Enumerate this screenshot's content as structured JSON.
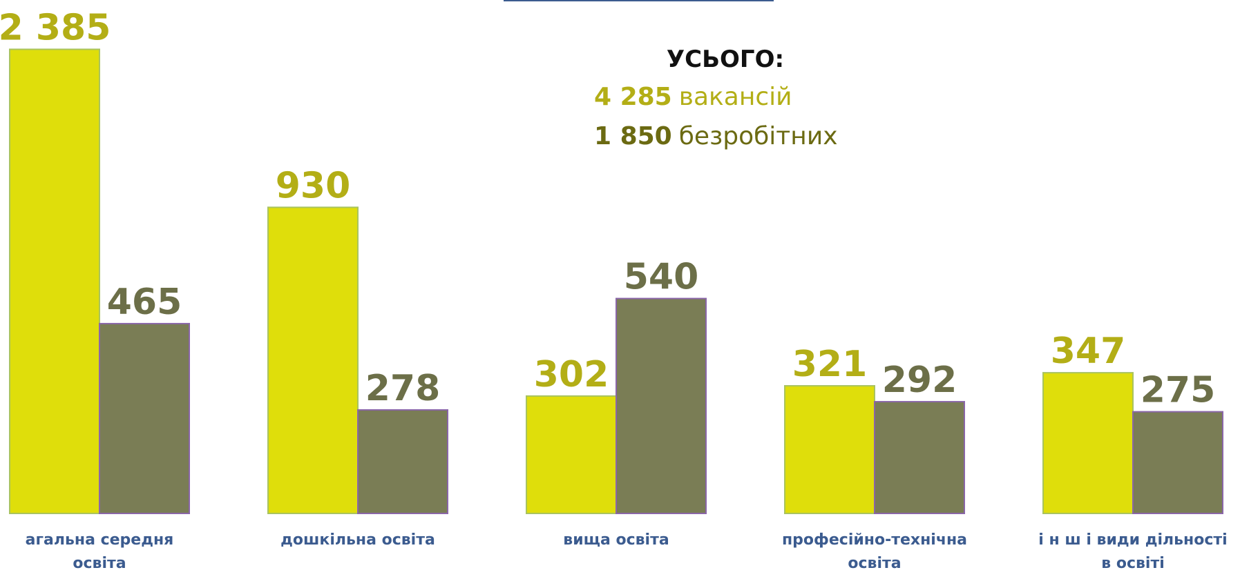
{
  "chart_data": {
    "type": "bar",
    "categories": [
      "агальна середня освіта",
      "дошкільна освіта",
      "вища освіта",
      "професійно-технічна освіта",
      "і н ш і  види дільності в освіті"
    ],
    "series": [
      {
        "color": "#dfde0b",
        "label_color": "#b3ae16",
        "values": [
          2385,
          930,
          302,
          321,
          347
        ],
        "value_labels": [
          "2 385",
          "930",
          "302",
          "321",
          "347"
        ]
      },
      {
        "color": "#7a7d55",
        "label_color": "#6c6f48",
        "values": [
          465,
          278,
          540,
          292,
          275
        ]
      }
    ],
    "log_scale": true,
    "ylim": [
      150,
      2500
    ],
    "annotation": {
      "title": "УСЬОГО:",
      "lines": [
        {
          "value": "4 285",
          "text": "вакансій",
          "color": "#b3ae16"
        },
        {
          "value": "1 850",
          "text": "безробітних",
          "color": "#6b6a12"
        }
      ]
    }
  }
}
